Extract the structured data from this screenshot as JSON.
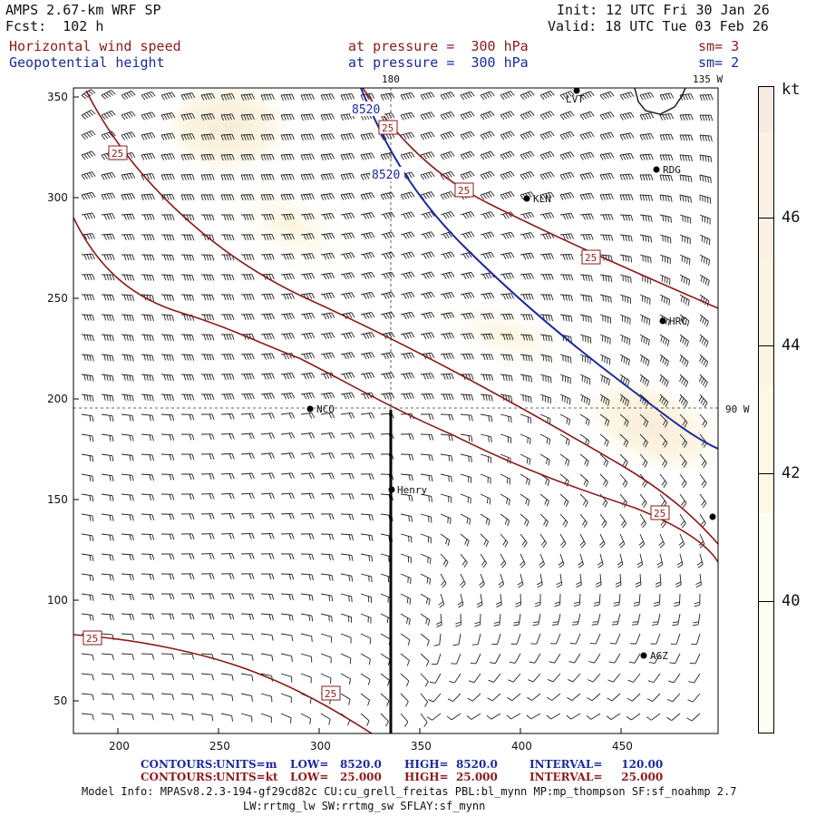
{
  "header": {
    "model": "AMPS 2.67-km WRF SP",
    "forecast": "Fcst:  102 h",
    "init": "Init: 12 UTC Fri 30 Jan 26",
    "valid": "Valid: 18 UTC Tue 03 Feb 26",
    "field1_name": "Horizontal wind speed",
    "field1_level": "at pressure =  300 hPa",
    "field1_smooth": "sm= 3",
    "field2_name": "Geopotential height",
    "field2_level": "at pressure =  300 hPa",
    "field2_smooth": "sm= 2"
  },
  "map": {
    "meridian_labels": [
      "180",
      "135 W",
      "90 W"
    ],
    "x_ticks": [
      "200",
      "250",
      "300",
      "350",
      "400",
      "450"
    ],
    "y_ticks": [
      "350",
      "300",
      "250",
      "200",
      "150",
      "100",
      "50"
    ],
    "stations": [
      "LVT",
      "RDG",
      "KLN",
      "HRC",
      "NCO",
      "Henry",
      "AGZ"
    ],
    "height_contour_value": "8520",
    "speed_contour_value": "25"
  },
  "colorbar": {
    "unit": "kt",
    "labels": [
      "46",
      "44",
      "42",
      "40"
    ],
    "colors": [
      "#f5ebe0",
      "#faf3e3",
      "#fbf6e2",
      "#fcf9e6",
      "#fefdf2"
    ]
  },
  "footer": {
    "row1": {
      "label": "CONTOURS:",
      "units": "UNITS=m",
      "low": "LOW=   8520.0",
      "high": "HIGH=  8520.0",
      "interval": "INTERVAL=     120.00"
    },
    "row2": {
      "label": "CONTOURS:",
      "units": "UNITS=kt",
      "low": "LOW=   25.000",
      "high": "HIGH=  25.000",
      "interval": "INTERVAL=     25.000"
    },
    "model_info": "Model Info: MPASv8.2.3-194-gf29cd82c CU:cu_grell_freitas PBL:bl_mynn MP:mp_thompson SF:sf_noahmp 2.7",
    "model_info2": "LW:rrtmg_lw SW:rrtmg_sw SFLAY:sf_mynn"
  }
}
